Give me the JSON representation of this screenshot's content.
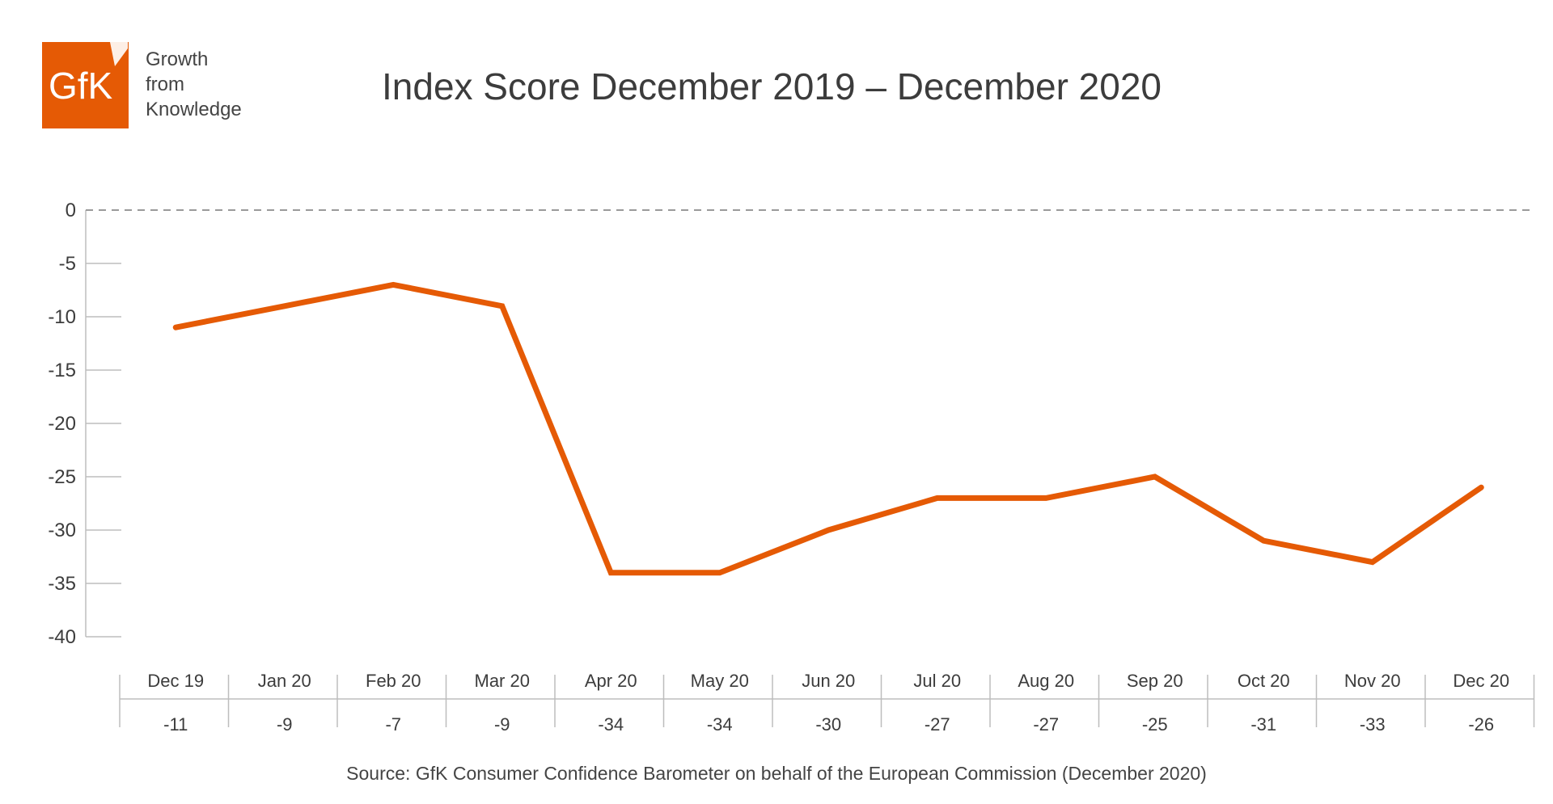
{
  "brand": {
    "logo_text": "GfK",
    "tagline": [
      "Growth",
      "from",
      "Knowledge"
    ],
    "color": "#E55A05"
  },
  "title": "Index Score December 2019 – December 2020",
  "source": "Source: GfK Consumer Confidence Barometer on behalf of the European Commission (December 2020)",
  "chart_data": {
    "type": "line",
    "title": "Index Score December 2019 – December 2020",
    "categories": [
      "Dec 19",
      "Jan 20",
      "Feb 20",
      "Mar 20",
      "Apr 20",
      "May 20",
      "Jun 20",
      "Jul 20",
      "Aug 20",
      "Sep 20",
      "Oct 20",
      "Nov 20",
      "Dec 20"
    ],
    "values": [
      -11,
      -9,
      -7,
      -9,
      -34,
      -34,
      -30,
      -27,
      -27,
      -25,
      -31,
      -33,
      -26
    ],
    "value_labels": [
      "-11",
      "-9",
      "-7",
      "-9",
      "-34",
      "-34",
      "-30",
      "-27",
      "-27",
      "-25",
      "-31",
      "-33",
      "-26"
    ],
    "ylim": [
      -40,
      0
    ],
    "yticks": [
      "0",
      "-5",
      "-10",
      "-15",
      "-20",
      "-25",
      "-30",
      "-35",
      "-40"
    ],
    "zero_line": "dashed",
    "line_color": "#E55A05",
    "grid": false,
    "data_table": true
  }
}
